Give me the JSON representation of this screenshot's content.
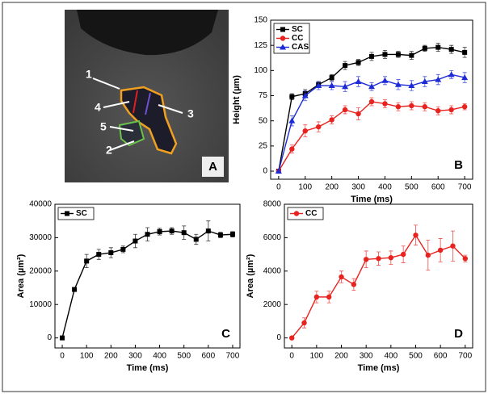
{
  "image_panel": {
    "labels": [
      "1",
      "2",
      "3",
      "4",
      "5"
    ],
    "panel_label": "A"
  },
  "chart_data": [
    {
      "type": "line",
      "panel_label": "B",
      "xlabel": "Time (ms)",
      "ylabel": "Height (µm)",
      "x": [
        0,
        50,
        100,
        150,
        200,
        250,
        300,
        350,
        400,
        450,
        500,
        550,
        600,
        650,
        700
      ],
      "xlim": [
        -30,
        730
      ],
      "xticks": [
        0,
        100,
        200,
        300,
        400,
        500,
        600,
        700
      ],
      "ylim": [
        -8,
        150
      ],
      "yticks": [
        0,
        25,
        50,
        75,
        100,
        125,
        150
      ],
      "legend": "upper left",
      "series": [
        {
          "name": "SC",
          "color": "#000000",
          "marker": "square",
          "values": [
            0,
            74,
            77,
            86,
            93,
            105,
            108,
            114,
            116,
            116,
            115,
            122,
            123,
            121,
            118
          ],
          "errors": [
            0,
            3,
            4,
            3,
            3,
            4,
            3,
            4,
            4,
            3,
            4,
            3,
            4,
            4,
            5
          ]
        },
        {
          "name": "CC",
          "color": "#e8231f",
          "marker": "circle",
          "values": [
            0,
            22,
            40,
            44,
            51,
            61,
            57,
            69,
            67,
            64,
            65,
            64,
            60,
            61,
            64
          ],
          "errors": [
            0,
            4,
            6,
            5,
            4,
            4,
            6,
            4,
            4,
            4,
            4,
            4,
            4,
            4,
            3
          ]
        },
        {
          "name": "CAS",
          "color": "#1d2bd6",
          "marker": "triangle",
          "values": [
            0,
            50,
            75,
            85,
            85,
            84,
            89,
            84,
            90,
            86,
            85,
            89,
            91,
            96,
            93
          ],
          "errors": [
            0,
            5,
            5,
            4,
            4,
            5,
            5,
            4,
            4,
            5,
            5,
            5,
            5,
            4,
            5
          ]
        }
      ]
    },
    {
      "type": "line",
      "panel_label": "C",
      "xlabel": "Time (ms)",
      "ylabel": "Area (µm²)",
      "x": [
        0,
        50,
        100,
        150,
        200,
        250,
        300,
        350,
        400,
        450,
        500,
        550,
        600,
        650,
        700
      ],
      "xlim": [
        -30,
        730
      ],
      "xticks": [
        0,
        100,
        200,
        300,
        400,
        500,
        600,
        700
      ],
      "ylim": [
        -3000,
        40000
      ],
      "yticks": [
        0,
        10000,
        20000,
        30000,
        40000
      ],
      "legend": "upper left",
      "series": [
        {
          "name": "SC",
          "color": "#000000",
          "marker": "square",
          "values": [
            0,
            14500,
            23000,
            25000,
            25500,
            26500,
            29000,
            31000,
            31800,
            32000,
            31500,
            29500,
            32000,
            30800,
            31000
          ],
          "errors": [
            0,
            500,
            2000,
            1500,
            1500,
            1000,
            2000,
            2000,
            1000,
            1000,
            2000,
            1500,
            3000,
            800,
            800
          ]
        }
      ]
    },
    {
      "type": "line",
      "panel_label": "D",
      "xlabel": "Time (ms)",
      "ylabel": "Area (µm²)",
      "x": [
        0,
        50,
        100,
        150,
        200,
        250,
        300,
        350,
        400,
        450,
        500,
        550,
        600,
        650,
        700
      ],
      "xlim": [
        -30,
        730
      ],
      "xticks": [
        0,
        100,
        200,
        300,
        400,
        500,
        600,
        700
      ],
      "ylim": [
        -600,
        8000
      ],
      "yticks": [
        0,
        2000,
        4000,
        6000,
        8000
      ],
      "legend": "upper left",
      "series": [
        {
          "name": "CC",
          "color": "#e8231f",
          "marker": "circle",
          "values": [
            0,
            900,
            2450,
            2450,
            3650,
            3200,
            4700,
            4750,
            4800,
            5000,
            6150,
            4950,
            5250,
            5500,
            4750
          ],
          "errors": [
            0,
            300,
            350,
            350,
            350,
            350,
            500,
            400,
            400,
            500,
            600,
            900,
            700,
            900,
            200
          ]
        }
      ]
    }
  ]
}
